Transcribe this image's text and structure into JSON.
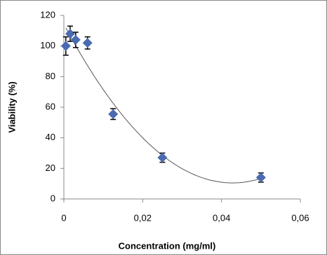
{
  "chart_data": {
    "type": "scatter",
    "x_label": "Concentration (mg/ml)",
    "y_label": "Viability (%)",
    "series": [
      {
        "color": "#4a6bb0",
        "x": [
          0.0005,
          0.0016,
          0.003,
          0.006,
          0.0125,
          0.025,
          0.05
        ],
        "values": [
          100,
          108,
          104,
          102,
          55.5,
          27,
          14
        ],
        "errors": [
          6,
          5,
          5,
          4,
          3.5,
          3,
          3
        ]
      }
    ],
    "trendline": "polynomial",
    "xlim": [
      0,
      0.06
    ],
    "xticks": [
      0,
      {
        "value": 0.02,
        "label": "0,02"
      },
      {
        "value": 0.04,
        "label": "0,04"
      },
      {
        "value": 0.06,
        "label": "0,06"
      }
    ],
    "ylim": [
      0,
      120
    ],
    "yticks": [
      0,
      20,
      40,
      60,
      80,
      100,
      120
    ],
    "grid": false
  }
}
